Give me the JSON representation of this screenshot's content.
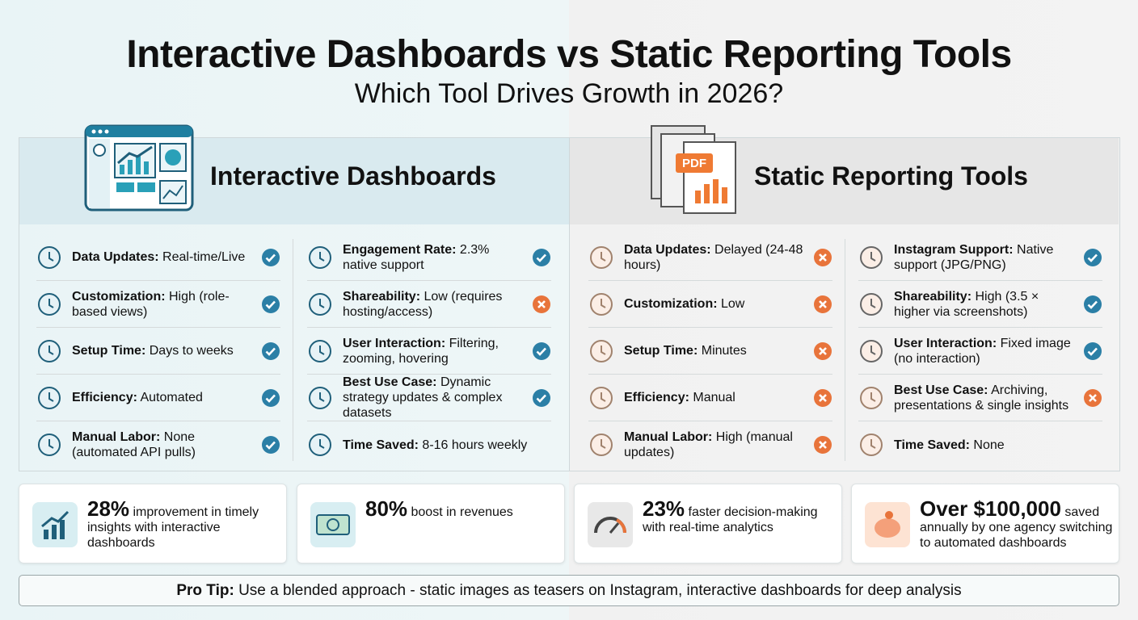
{
  "header": {
    "title": "Interactive Dashboards vs Static Reporting Tools",
    "subtitle": "Which Tool Drives Growth in 2026?"
  },
  "panels": [
    {
      "title": "Interactive Dashboards",
      "columns": [
        [
          {
            "label": "Data Updates:",
            "value": "Real-time/Live",
            "status": "check"
          },
          {
            "label": "Customization:",
            "value": "High (role-based views)",
            "status": "check"
          },
          {
            "label": "Setup Time:",
            "value": "Days to weeks",
            "status": "check"
          },
          {
            "label": "Efficiency:",
            "value": "Automated",
            "status": "check"
          },
          {
            "label": "Manual Labor:",
            "value": "None (automated API pulls)",
            "status": "check"
          }
        ],
        [
          {
            "label": "Engagement Rate:",
            "value": "2.3% native support",
            "status": "check"
          },
          {
            "label": "Shareability:",
            "value": "Low (requires hosting/access)",
            "status": "cross"
          },
          {
            "label": "User Interaction:",
            "value": "Filtering, zooming, hovering",
            "status": "check"
          },
          {
            "label": "Best Use Case:",
            "value": "Dynamic strategy updates & complex datasets",
            "status": "check"
          },
          {
            "label": "Time Saved:",
            "value": "8-16 hours weekly",
            "status": "none"
          }
        ]
      ]
    },
    {
      "title": "Static Reporting Tools",
      "columns": [
        [
          {
            "label": "Data Updates:",
            "value": "Delayed (24-48 hours)",
            "status": "cross"
          },
          {
            "label": "Customization:",
            "value": "Low",
            "status": "cross"
          },
          {
            "label": "Setup Time:",
            "value": "Minutes",
            "status": "cross"
          },
          {
            "label": "Efficiency:",
            "value": "Manual",
            "status": "cross"
          },
          {
            "label": "Manual Labor:",
            "value": "High (manual updates)",
            "status": "cross"
          }
        ],
        [
          {
            "label": "Instagram Support:",
            "value": "Native support (JPG/PNG)",
            "status": "check"
          },
          {
            "label": "Shareability:",
            "value": "High (3.5 × higher via screenshots)",
            "status": "check"
          },
          {
            "label": "User Interaction:",
            "value": "Fixed image (no interaction)",
            "status": "check"
          },
          {
            "label": "Best Use Case:",
            "value": "Archiving, presentations & single insights",
            "status": "cross"
          },
          {
            "label": "Time Saved:",
            "value": "None",
            "status": "none"
          }
        ]
      ]
    }
  ],
  "stats": [
    {
      "highlight": "28%",
      "text": "improvement in timely insights with interactive dashboards"
    },
    {
      "highlight": "80%",
      "text": "boost in revenues"
    },
    {
      "highlight": "23%",
      "text": "faster decision-making with real-time analytics"
    },
    {
      "highlight": "Over $100,000",
      "text": "saved annually by one agency switching to automated dashboards"
    }
  ],
  "tip": {
    "label": "Pro Tip:",
    "text": "Use a blended approach - static images as teasers on Instagram, interactive dashboards for deep analysis"
  }
}
